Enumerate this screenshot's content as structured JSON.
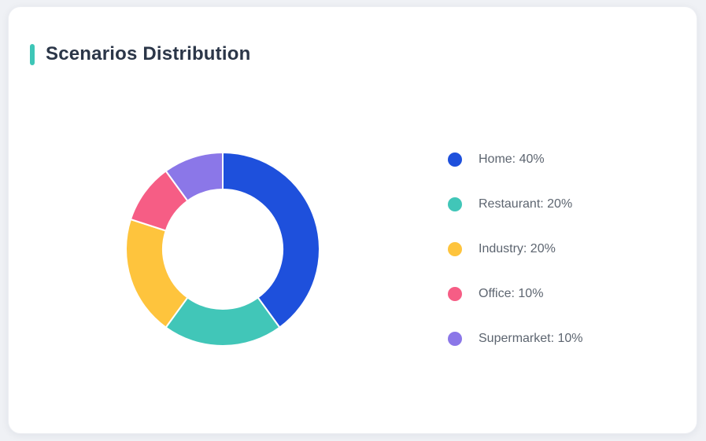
{
  "card": {
    "title": "Scenarios Distribution",
    "accent_color": "#3ec6b7"
  },
  "chart_data": {
    "type": "pie",
    "subtype": "donut",
    "title": "Scenarios Distribution",
    "categories": [
      "Home",
      "Restaurant",
      "Industry",
      "Office",
      "Supermarket"
    ],
    "values": [
      40,
      20,
      20,
      10,
      10
    ],
    "unit": "%",
    "colors": [
      "#1e50dc",
      "#41c6b8",
      "#fec43d",
      "#f65d85",
      "#8b77e8"
    ],
    "start_angle_deg": 0,
    "direction": "clockwise",
    "inner_radius_ratio": 0.615,
    "segment_gap_color": "#ffffff",
    "legend_position": "right",
    "legend_format": "{label}: {value}%"
  }
}
